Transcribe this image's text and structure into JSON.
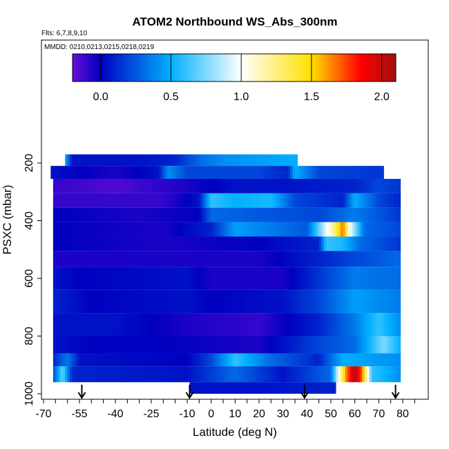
{
  "chart_data": {
    "type": "heatmap",
    "title": "ATOM2 Northbound WS_Abs_300nm",
    "subtitle": "Flts: 6,7,8,9,10",
    "annotation": "MMDD: 0210,0213,0215,0218,0219",
    "xlabel": "Latitude (deg N)",
    "ylabel": "PSXC (mbar)",
    "xlim": [
      -70,
      85
    ],
    "ylim": [
      1000,
      50
    ],
    "y_reversed": true,
    "x_ticks": [
      "-70",
      "-55",
      "-40",
      "-25",
      "-10",
      "0",
      "10",
      "20",
      "30",
      "40",
      "50",
      "60",
      "70",
      "80"
    ],
    "x_tick_values": [
      -70,
      -55,
      -40,
      -25,
      -10,
      0,
      10,
      20,
      30,
      40,
      50,
      60,
      70,
      80
    ],
    "y_ticks": [
      "200",
      "400",
      "600",
      "800",
      "1000"
    ],
    "y_tick_values": [
      200,
      400,
      600,
      800,
      1000
    ],
    "colorbar": {
      "range": [
        -0.2,
        2.1
      ],
      "ticks": [
        "0.0",
        "0.5",
        "1.0",
        "1.5",
        "2.0"
      ],
      "tick_values": [
        0.0,
        0.5,
        1.0,
        1.5,
        2.0
      ],
      "placement": "top"
    },
    "flight_markers_lat": [
      -54,
      -9,
      39,
      77
    ],
    "layers": [
      {
        "p_top": 170,
        "p_bot": 210,
        "lat_min": -61,
        "lat_max": 36,
        "values": [
          {
            "lat": -61,
            "v": 0.5
          },
          {
            "lat": -58,
            "v": 0.05
          },
          {
            "lat": -30,
            "v": 0.05
          },
          {
            "lat": -15,
            "v": 0.1
          },
          {
            "lat": -5,
            "v": 0.3
          },
          {
            "lat": 5,
            "v": 0.4
          },
          {
            "lat": 20,
            "v": 0.45
          },
          {
            "lat": 36,
            "v": 0.5
          }
        ]
      },
      {
        "p_top": 210,
        "p_bot": 255,
        "lat_min": -67,
        "lat_max": 72,
        "values": [
          {
            "lat": -67,
            "v": 0.05
          },
          {
            "lat": -40,
            "v": -0.05
          },
          {
            "lat": -22,
            "v": 0.05
          },
          {
            "lat": -18,
            "v": 0.4
          },
          {
            "lat": -10,
            "v": 0.2
          },
          {
            "lat": 20,
            "v": 0.2
          },
          {
            "lat": 32,
            "v": 0.1
          },
          {
            "lat": 35,
            "v": 0.5
          },
          {
            "lat": 45,
            "v": 0.2
          },
          {
            "lat": 72,
            "v": 0.15
          }
        ]
      },
      {
        "p_top": 255,
        "p_bot": 305,
        "lat_min": -66,
        "lat_max": 79,
        "values": [
          {
            "lat": -66,
            "v": -0.1
          },
          {
            "lat": -40,
            "v": -0.15
          },
          {
            "lat": -10,
            "v": -0.05
          },
          {
            "lat": 10,
            "v": 0.05
          },
          {
            "lat": 30,
            "v": 0.05
          },
          {
            "lat": 60,
            "v": 0.1
          },
          {
            "lat": 70,
            "v": 0.2
          },
          {
            "lat": 79,
            "v": 0.15
          }
        ]
      },
      {
        "p_top": 305,
        "p_bot": 355,
        "lat_min": -66,
        "lat_max": 79,
        "values": [
          {
            "lat": -66,
            "v": -0.1
          },
          {
            "lat": -20,
            "v": -0.1
          },
          {
            "lat": -5,
            "v": 0.05
          },
          {
            "lat": 0,
            "v": 0.6
          },
          {
            "lat": 10,
            "v": 0.5
          },
          {
            "lat": 25,
            "v": 0.55
          },
          {
            "lat": 35,
            "v": 0.2
          },
          {
            "lat": 55,
            "v": 0.1
          },
          {
            "lat": 60,
            "v": 0.5
          },
          {
            "lat": 70,
            "v": 0.2
          },
          {
            "lat": 79,
            "v": 0.1
          }
        ]
      },
      {
        "p_top": 355,
        "p_bot": 405,
        "lat_min": -66,
        "lat_max": 79,
        "values": [
          {
            "lat": -66,
            "v": 0.0
          },
          {
            "lat": -30,
            "v": -0.05
          },
          {
            "lat": -5,
            "v": 0.0
          },
          {
            "lat": 0,
            "v": 0.3
          },
          {
            "lat": 20,
            "v": 0.25
          },
          {
            "lat": 45,
            "v": 0.2
          },
          {
            "lat": 60,
            "v": 0.35
          },
          {
            "lat": 79,
            "v": 0.15
          }
        ]
      },
      {
        "p_top": 405,
        "p_bot": 455,
        "lat_min": -66,
        "lat_max": 79,
        "values": [
          {
            "lat": -66,
            "v": 0.0
          },
          {
            "lat": -20,
            "v": -0.05
          },
          {
            "lat": 0,
            "v": 0.1
          },
          {
            "lat": 10,
            "v": 0.45
          },
          {
            "lat": 40,
            "v": 0.25
          },
          {
            "lat": 52,
            "v": 1.3
          },
          {
            "lat": 55,
            "v": 1.7
          },
          {
            "lat": 58,
            "v": 1.0
          },
          {
            "lat": 64,
            "v": 0.3
          },
          {
            "lat": 79,
            "v": 0.2
          }
        ]
      },
      {
        "p_top": 455,
        "p_bot": 505,
        "lat_min": -66,
        "lat_max": 79,
        "values": [
          {
            "lat": -66,
            "v": 0.0
          },
          {
            "lat": -20,
            "v": -0.05
          },
          {
            "lat": 20,
            "v": 0.0
          },
          {
            "lat": 45,
            "v": 0.1
          },
          {
            "lat": 48,
            "v": 0.6
          },
          {
            "lat": 55,
            "v": 0.55
          },
          {
            "lat": 62,
            "v": 0.3
          },
          {
            "lat": 79,
            "v": 0.15
          }
        ]
      },
      {
        "p_top": 505,
        "p_bot": 560,
        "lat_min": -66,
        "lat_max": 79,
        "values": [
          {
            "lat": -66,
            "v": -0.05
          },
          {
            "lat": -10,
            "v": -0.05
          },
          {
            "lat": 20,
            "v": -0.05
          },
          {
            "lat": 45,
            "v": 0.1
          },
          {
            "lat": 60,
            "v": 0.2
          },
          {
            "lat": 79,
            "v": 0.3
          }
        ]
      },
      {
        "p_top": 560,
        "p_bot": 640,
        "lat_min": -66,
        "lat_max": 79,
        "values": [
          {
            "lat": -66,
            "v": 0.05
          },
          {
            "lat": -55,
            "v": 0.0
          },
          {
            "lat": -10,
            "v": 0.05
          },
          {
            "lat": 0,
            "v": -0.05
          },
          {
            "lat": 30,
            "v": -0.05
          },
          {
            "lat": 45,
            "v": 0.15
          },
          {
            "lat": 60,
            "v": 0.35
          },
          {
            "lat": 79,
            "v": 0.3
          }
        ]
      },
      {
        "p_top": 640,
        "p_bot": 720,
        "lat_min": -66,
        "lat_max": 79,
        "values": [
          {
            "lat": -66,
            "v": 0.1
          },
          {
            "lat": -50,
            "v": 0.0
          },
          {
            "lat": -10,
            "v": 0.05
          },
          {
            "lat": 0,
            "v": 0.0
          },
          {
            "lat": 30,
            "v": 0.05
          },
          {
            "lat": 45,
            "v": 0.2
          },
          {
            "lat": 60,
            "v": 0.45
          },
          {
            "lat": 79,
            "v": 0.35
          }
        ]
      },
      {
        "p_top": 720,
        "p_bot": 800,
        "lat_min": -66,
        "lat_max": 79,
        "values": [
          {
            "lat": -66,
            "v": 0.05
          },
          {
            "lat": -40,
            "v": 0.05
          },
          {
            "lat": -10,
            "v": -0.05
          },
          {
            "lat": 20,
            "v": -0.1
          },
          {
            "lat": 45,
            "v": 0.1
          },
          {
            "lat": 60,
            "v": 0.35
          },
          {
            "lat": 70,
            "v": 0.6
          },
          {
            "lat": 79,
            "v": 0.4
          }
        ]
      },
      {
        "p_top": 800,
        "p_bot": 860,
        "lat_min": -66,
        "lat_max": 79,
        "values": [
          {
            "lat": -66,
            "v": 0.05
          },
          {
            "lat": -50,
            "v": 0.0
          },
          {
            "lat": -20,
            "v": 0.0
          },
          {
            "lat": 20,
            "v": -0.05
          },
          {
            "lat": 45,
            "v": 0.2
          },
          {
            "lat": 60,
            "v": 0.3
          },
          {
            "lat": 72,
            "v": 0.75
          },
          {
            "lat": 79,
            "v": 0.5
          }
        ]
      },
      {
        "p_top": 860,
        "p_bot": 905,
        "lat_min": -66,
        "lat_max": 79,
        "values": [
          {
            "lat": -66,
            "v": 0.1
          },
          {
            "lat": -60,
            "v": 0.35
          },
          {
            "lat": -55,
            "v": 0.05
          },
          {
            "lat": -10,
            "v": 0.0
          },
          {
            "lat": 0,
            "v": 0.2
          },
          {
            "lat": 10,
            "v": 0.6
          },
          {
            "lat": 25,
            "v": 0.3
          },
          {
            "lat": 45,
            "v": 0.1
          },
          {
            "lat": 55,
            "v": 0.5
          },
          {
            "lat": 79,
            "v": 0.4
          }
        ]
      },
      {
        "p_top": 905,
        "p_bot": 960,
        "lat_min": -66,
        "lat_max": 79,
        "values": [
          {
            "lat": -66,
            "v": 0.2
          },
          {
            "lat": -62,
            "v": 0.7
          },
          {
            "lat": -58,
            "v": 0.1
          },
          {
            "lat": -10,
            "v": 0.05
          },
          {
            "lat": 10,
            "v": 0.3
          },
          {
            "lat": 30,
            "v": 0.05
          },
          {
            "lat": 50,
            "v": 0.3
          },
          {
            "lat": 56,
            "v": 1.6
          },
          {
            "lat": 60,
            "v": 2.05
          },
          {
            "lat": 63,
            "v": 1.7
          },
          {
            "lat": 67,
            "v": 0.6
          },
          {
            "lat": 79,
            "v": 0.4
          }
        ]
      },
      {
        "p_top": 960,
        "p_bot": 1000,
        "lat_min": -9,
        "lat_max": 52,
        "values": [
          {
            "lat": -9,
            "v": 0.05
          },
          {
            "lat": 20,
            "v": 0.05
          },
          {
            "lat": 52,
            "v": 0.1
          }
        ]
      }
    ]
  },
  "colors": {
    "scale": [
      "#6a0dd8",
      "#0000c0",
      "#00b0ff",
      "#ffffff",
      "#ffe000",
      "#ff0000",
      "#a01010"
    ]
  }
}
